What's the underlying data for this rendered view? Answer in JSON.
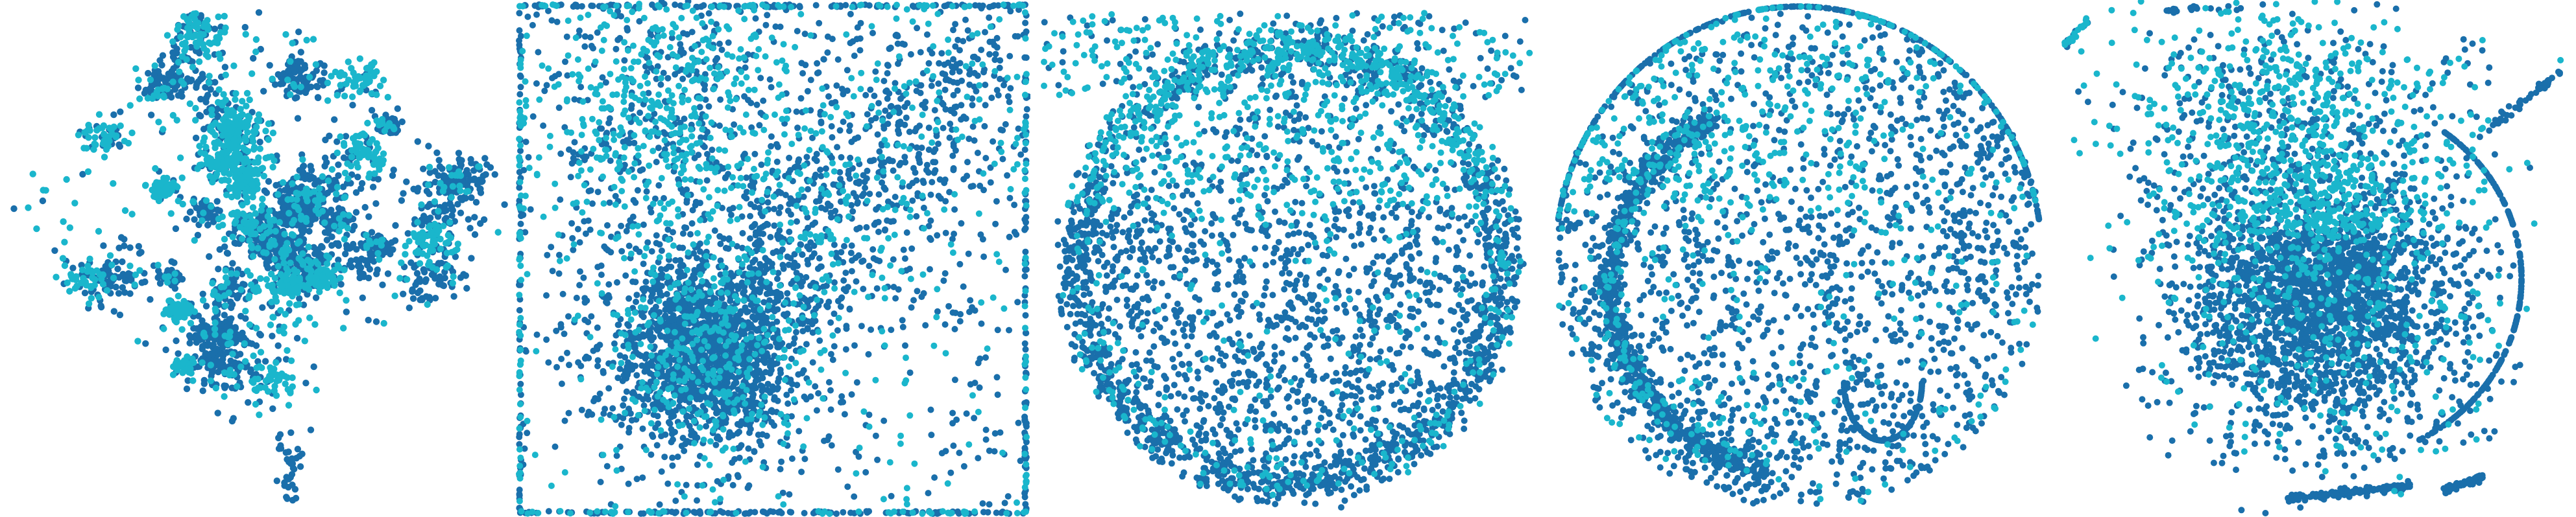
{
  "colors": {
    "series_a": "#1a6fab",
    "series_b": "#1ab6cc"
  },
  "chart_data": [
    {
      "type": "scatter",
      "layout_name": "cluster-islands",
      "series": [
        {
          "color": "series_a"
        },
        {
          "color": "series_b"
        }
      ]
    },
    {
      "type": "scatter",
      "layout_name": "square-dense-core",
      "series": [
        {
          "color": "series_a"
        },
        {
          "color": "series_b"
        }
      ]
    },
    {
      "type": "scatter",
      "layout_name": "round-shell",
      "series": [
        {
          "color": "series_a"
        },
        {
          "color": "series_b"
        }
      ]
    },
    {
      "type": "scatter",
      "layout_name": "shell-with-arcs",
      "series": [
        {
          "color": "series_a"
        },
        {
          "color": "series_b"
        }
      ]
    },
    {
      "type": "scatter",
      "layout_name": "dense-blob",
      "series": [
        {
          "color": "series_a"
        },
        {
          "color": "series_b"
        }
      ]
    }
  ]
}
